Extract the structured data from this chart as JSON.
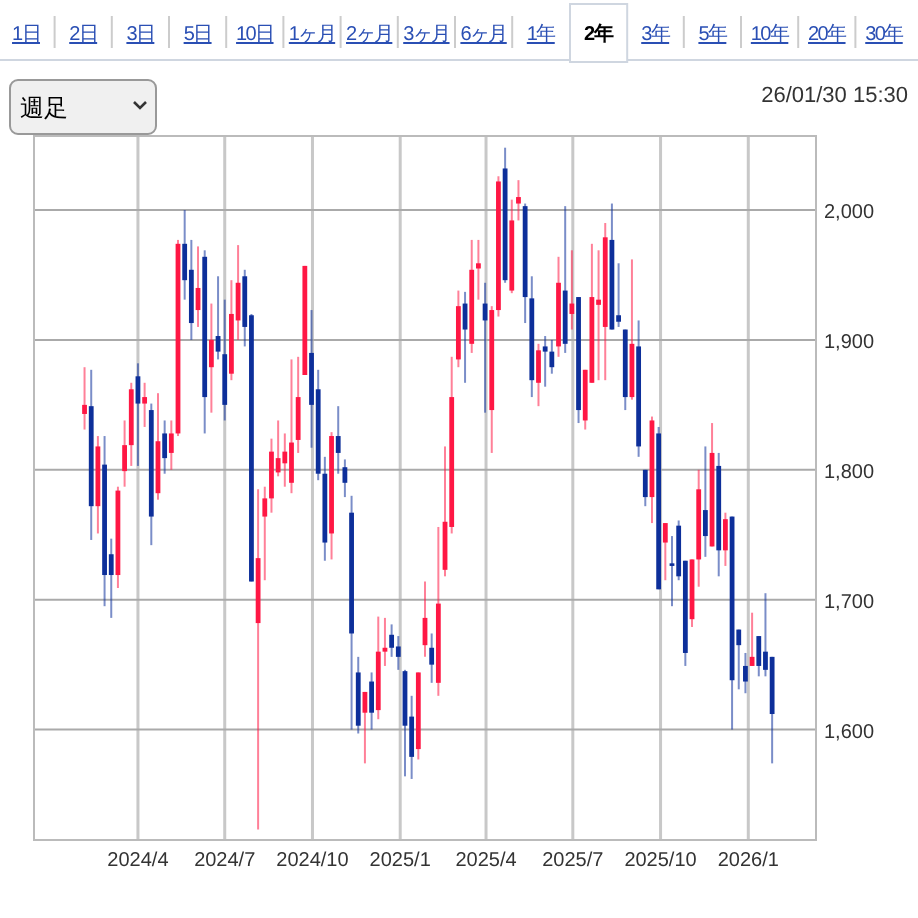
{
  "chart_data": {
    "type": "candlestick",
    "annotations": [
      "1日",
      "2日",
      "3日",
      "5日",
      "10日",
      "1ヶ月",
      "2ヶ月",
      "3ヶ月",
      "6ヶ月",
      "1年",
      "2年",
      "3年",
      "5年",
      "10年",
      "20年",
      "30年",
      "週足",
      "26/01/30 15:30"
    ],
    "x": [
      "2024-02-05",
      "2024-02-12",
      "2024-02-19",
      "2024-02-26",
      "2024-03-04",
      "2024-03-11",
      "2024-03-18",
      "2024-03-25",
      "2024-04-01",
      "2024-04-08",
      "2024-04-15",
      "2024-04-22",
      "2024-04-29",
      "2024-05-06",
      "2024-05-13",
      "2024-05-20",
      "2024-05-27",
      "2024-06-03",
      "2024-06-10",
      "2024-06-17",
      "2024-06-24",
      "2024-07-01",
      "2024-07-08",
      "2024-07-15",
      "2024-07-22",
      "2024-07-29",
      "2024-08-05",
      "2024-08-12",
      "2024-08-19",
      "2024-08-26",
      "2024-09-02",
      "2024-09-09",
      "2024-09-16",
      "2024-09-23",
      "2024-09-30",
      "2024-10-07",
      "2024-10-14",
      "2024-10-21",
      "2024-10-28",
      "2024-11-04",
      "2024-11-11",
      "2024-11-18",
      "2024-11-25",
      "2024-12-02",
      "2024-12-09",
      "2024-12-16",
      "2024-12-23",
      "2024-12-30",
      "2025-01-06",
      "2025-01-13",
      "2025-01-20",
      "2025-01-27",
      "2025-02-03",
      "2025-02-10",
      "2025-02-17",
      "2025-02-24",
      "2025-03-03",
      "2025-03-10",
      "2025-03-17",
      "2025-03-24",
      "2025-03-31",
      "2025-04-07",
      "2025-04-14",
      "2025-04-21",
      "2025-04-28",
      "2025-05-05",
      "2025-05-12",
      "2025-05-19",
      "2025-05-26",
      "2025-06-02",
      "2025-06-09",
      "2025-06-16",
      "2025-06-23",
      "2025-06-30",
      "2025-07-07",
      "2025-07-14",
      "2025-07-21",
      "2025-07-28",
      "2025-08-04",
      "2025-08-11",
      "2025-08-18",
      "2025-08-25",
      "2025-09-01",
      "2025-09-08",
      "2025-09-15",
      "2025-09-22",
      "2025-09-29",
      "2025-10-06",
      "2025-10-13",
      "2025-10-20",
      "2025-10-27",
      "2025-11-03",
      "2025-11-10",
      "2025-11-17",
      "2025-11-24",
      "2025-12-01",
      "2025-12-08",
      "2025-12-15",
      "2025-12-22",
      "2025-12-29",
      "2026-01-05",
      "2026-01-12",
      "2026-01-19",
      "2026-01-26"
    ],
    "ohlc": [
      [
        1843,
        1879,
        1831,
        1850
      ],
      [
        1849,
        1877,
        1746,
        1772
      ],
      [
        1772,
        1826,
        1751,
        1818
      ],
      [
        1804,
        1826,
        1695,
        1719
      ],
      [
        1735,
        1747,
        1686,
        1719
      ],
      [
        1719,
        1787,
        1709,
        1784
      ],
      [
        1799,
        1838,
        1787,
        1819
      ],
      [
        1819,
        1867,
        1803,
        1862
      ],
      [
        1872,
        1882,
        1803,
        1851
      ],
      [
        1851,
        1867,
        1833,
        1856
      ],
      [
        1846,
        1851,
        1742,
        1764
      ],
      [
        1782,
        1859,
        1777,
        1822
      ],
      [
        1828,
        1838,
        1797,
        1809
      ],
      [
        1813,
        1838,
        1800,
        1828
      ],
      [
        1828,
        1977,
        1826,
        1974
      ],
      [
        1974,
        2000,
        1931,
        1946
      ],
      [
        1954,
        1977,
        1900,
        1913
      ],
      [
        1923,
        1972,
        1910,
        1940
      ],
      [
        1964,
        1969,
        1828,
        1856
      ],
      [
        1879,
        1928,
        1844,
        1900
      ],
      [
        1903,
        1949,
        1885,
        1891
      ],
      [
        1889,
        1931,
        1838,
        1850
      ],
      [
        1874,
        1946,
        1869,
        1920
      ],
      [
        1915,
        1973,
        1900,
        1944
      ],
      [
        1949,
        1954,
        1895,
        1910
      ],
      [
        1919,
        1920,
        1714,
        1714
      ],
      [
        1682,
        1785,
        1523,
        1732
      ],
      [
        1764,
        1787,
        1715,
        1778
      ],
      [
        1778,
        1824,
        1767,
        1814
      ],
      [
        1798,
        1838,
        1795,
        1809
      ],
      [
        1805,
        1828,
        1787,
        1814
      ],
      [
        1790,
        1885,
        1782,
        1821
      ],
      [
        1823,
        1887,
        1813,
        1856
      ],
      [
        1873,
        1957,
        1873,
        1957
      ],
      [
        1890,
        1923,
        1817,
        1850
      ],
      [
        1862,
        1877,
        1792,
        1797
      ],
      [
        1797,
        1810,
        1730,
        1744
      ],
      [
        1751,
        1829,
        1731,
        1826
      ],
      [
        1826,
        1849,
        1797,
        1813
      ],
      [
        1802,
        1808,
        1779,
        1790
      ],
      [
        1767,
        1780,
        1600,
        1674
      ],
      [
        1644,
        1656,
        1597,
        1603
      ],
      [
        1613,
        1629,
        1574,
        1629
      ],
      [
        1637,
        1644,
        1600,
        1613
      ],
      [
        1615,
        1687,
        1608,
        1660
      ],
      [
        1660,
        1686,
        1649,
        1663
      ],
      [
        1673,
        1681,
        1656,
        1663
      ],
      [
        1664,
        1672,
        1646,
        1656
      ],
      [
        1645,
        1646,
        1564,
        1603
      ],
      [
        1610,
        1626,
        1562,
        1579
      ],
      [
        1585,
        1644,
        1577,
        1644
      ],
      [
        1665,
        1714,
        1656,
        1686
      ],
      [
        1663,
        1674,
        1636,
        1650
      ],
      [
        1636,
        1756,
        1626,
        1697
      ],
      [
        1723,
        1818,
        1718,
        1760
      ],
      [
        1756,
        1887,
        1751,
        1856
      ],
      [
        1885,
        1938,
        1879,
        1926
      ],
      [
        1928,
        1937,
        1867,
        1908
      ],
      [
        1897,
        1977,
        1890,
        1954
      ],
      [
        1955,
        1977,
        1931,
        1959
      ],
      [
        1928,
        1944,
        1844,
        1915
      ],
      [
        1846,
        1926,
        1813,
        1923
      ],
      [
        1923,
        2026,
        1918,
        2022
      ],
      [
        2032,
        2048,
        1944,
        1946
      ],
      [
        1938,
        2008,
        1936,
        1992
      ],
      [
        2005,
        2023,
        1992,
        2010
      ],
      [
        2003,
        2005,
        1913,
        1933
      ],
      [
        1932,
        1949,
        1856,
        1869
      ],
      [
        1867,
        1897,
        1849,
        1892
      ],
      [
        1895,
        1903,
        1864,
        1891
      ],
      [
        1891,
        1900,
        1874,
        1879
      ],
      [
        1895,
        1964,
        1887,
        1944
      ],
      [
        1938,
        2003,
        1890,
        1897
      ],
      [
        1920,
        1969,
        1908,
        1928
      ],
      [
        1933,
        1933,
        1836,
        1846
      ],
      [
        1838,
        1877,
        1831,
        1877
      ],
      [
        1867,
        1974,
        1867,
        1933
      ],
      [
        1927,
        1969,
        1869,
        1931
      ],
      [
        1910,
        1990,
        1869,
        1979
      ],
      [
        1977,
        2005,
        1908,
        1908
      ],
      [
        1919,
        1959,
        1910,
        1914
      ],
      [
        1908,
        1908,
        1846,
        1856
      ],
      [
        1856,
        1962,
        1854,
        1897
      ],
      [
        1895,
        1915,
        1810,
        1818
      ],
      [
        1800,
        1800,
        1772,
        1779
      ],
      [
        1779,
        1841,
        1759,
        1838
      ],
      [
        1828,
        1833,
        1708,
        1708
      ],
      [
        1744,
        1759,
        1715,
        1759
      ],
      [
        1728,
        1749,
        1695,
        1726
      ],
      [
        1757,
        1761,
        1715,
        1718
      ],
      [
        1730,
        1730,
        1649,
        1659
      ],
      [
        1685,
        1731,
        1679,
        1731
      ],
      [
        1731,
        1800,
        1710,
        1785
      ],
      [
        1769,
        1818,
        1733,
        1749
      ],
      [
        1741,
        1836,
        1741,
        1813
      ],
      [
        1803,
        1813,
        1718,
        1738
      ],
      [
        1738,
        1767,
        1726,
        1762
      ],
      [
        1764,
        1764,
        1600,
        1638
      ],
      [
        1677,
        1677,
        1631,
        1665
      ],
      [
        1649,
        1659,
        1628,
        1637
      ],
      [
        1649,
        1690,
        1649,
        1656
      ],
      [
        1672,
        1672,
        1641,
        1649
      ],
      [
        1660,
        1705,
        1641,
        1646
      ],
      [
        1656,
        1656,
        1574,
        1612
      ]
    ],
    "colors": [
      "#ff1744",
      "#0d2f9a",
      "#ff1744",
      "#0d2f9a",
      "#0d2f9a",
      "#ff1744",
      "#ff1744",
      "#ff1744",
      "#0d2f9a",
      "#ff1744",
      "#0d2f9a",
      "#ff1744",
      "#0d2f9a",
      "#ff1744",
      "#ff1744",
      "#0d2f9a",
      "#0d2f9a",
      "#ff1744",
      "#0d2f9a",
      "#ff1744",
      "#0d2f9a",
      "#0d2f9a",
      "#ff1744",
      "#ff1744",
      "#0d2f9a",
      "#0d2f9a",
      "#ff1744",
      "#ff1744",
      "#ff1744",
      "#ff1744",
      "#ff1744",
      "#ff1744",
      "#ff1744",
      "#ff1744",
      "#0d2f9a",
      "#0d2f9a",
      "#0d2f9a",
      "#ff1744",
      "#0d2f9a",
      "#0d2f9a",
      "#0d2f9a",
      "#0d2f9a",
      "#ff1744",
      "#0d2f9a",
      "#ff1744",
      "#ff1744",
      "#0d2f9a",
      "#0d2f9a",
      "#0d2f9a",
      "#0d2f9a",
      "#ff1744",
      "#ff1744",
      "#0d2f9a",
      "#ff1744",
      "#ff1744",
      "#ff1744",
      "#ff1744",
      "#0d2f9a",
      "#ff1744",
      "#ff1744",
      "#0d2f9a",
      "#ff1744",
      "#ff1744",
      "#0d2f9a",
      "#ff1744",
      "#ff1744",
      "#0d2f9a",
      "#0d2f9a",
      "#ff1744",
      "#0d2f9a",
      "#0d2f9a",
      "#ff1744",
      "#0d2f9a",
      "#ff1744",
      "#0d2f9a",
      "#ff1744",
      "#ff1744",
      "#ff1744",
      "#ff1744",
      "#0d2f9a",
      "#0d2f9a",
      "#0d2f9a",
      "#ff1744",
      "#0d2f9a",
      "#0d2f9a",
      "#ff1744",
      "#0d2f9a",
      "#ff1744",
      "#0d2f9a",
      "#0d2f9a",
      "#0d2f9a",
      "#ff1744",
      "#ff1744",
      "#0d2f9a",
      "#ff1744",
      "#0d2f9a",
      "#ff1744",
      "#0d2f9a",
      "#0d2f9a",
      "#0d2f9a",
      "#ff1744",
      "#0d2f9a",
      "#0d2f9a",
      "#0d2f9a"
    ],
    "xlim": [
      "2023-12-14",
      "2026-03-13"
    ],
    "xticks": [
      {
        "value": "2024-04-01",
        "label": "2024/4"
      },
      {
        "value": "2024-07-01",
        "label": "2024/7"
      },
      {
        "value": "2024-10-01",
        "label": "2024/10"
      },
      {
        "value": "2025-01-01",
        "label": "2025/1"
      },
      {
        "value": "2025-04-01",
        "label": "2025/4"
      },
      {
        "value": "2025-07-01",
        "label": "2025/7"
      },
      {
        "value": "2025-10-01",
        "label": "2025/10"
      },
      {
        "value": "2026-01-01",
        "label": "2026/1"
      }
    ],
    "ylim": [
      1515,
      2057
    ],
    "yticks": [
      {
        "value": 1600,
        "label": "1,600"
      },
      {
        "value": 1700,
        "label": "1,700"
      },
      {
        "value": 1800,
        "label": "1,800"
      },
      {
        "value": 1900,
        "label": "1,900"
      },
      {
        "value": 2000,
        "label": "2,000"
      }
    ],
    "grid": true
  }
}
